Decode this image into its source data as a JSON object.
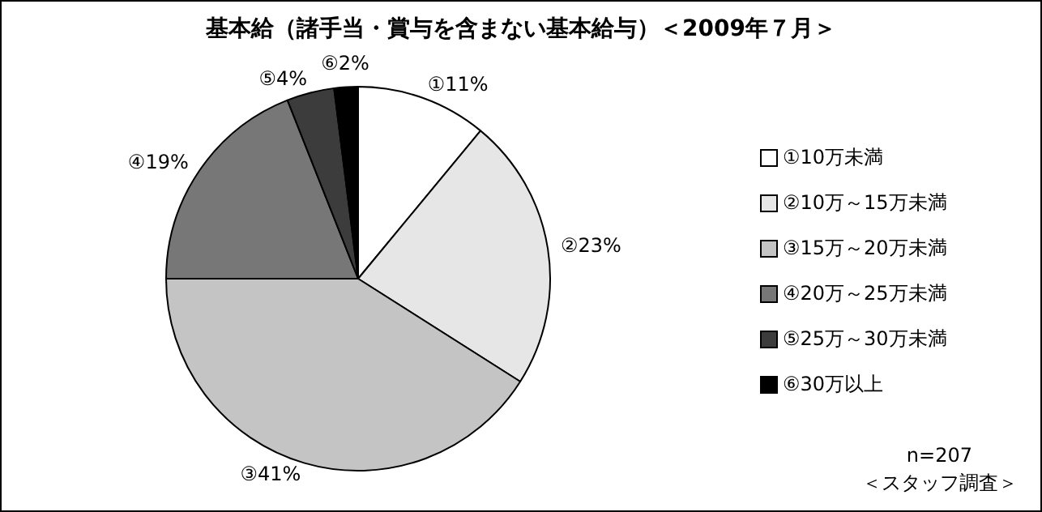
{
  "chart_data": {
    "type": "pie",
    "title": "基本給（諸手当・賞与を含まない基本給与）＜2009年７月＞",
    "categories": [
      "①10万未満",
      "②10万～15万未満",
      "③15万～20万未満",
      "④20万～25万未満",
      "⑤25万～30万未満",
      "⑥30万以上"
    ],
    "values": [
      11,
      23,
      41,
      19,
      4,
      2
    ],
    "colors": [
      "#ffffff",
      "#e6e6e6",
      "#c4c4c4",
      "#777777",
      "#3c3c3c",
      "#000000"
    ],
    "value_labels": [
      "①11%",
      "②23%",
      "③41%",
      "④19%",
      "⑤4%",
      "⑥2%"
    ],
    "legend": "right",
    "annotations": [
      "n=207",
      "＜スタッフ調査＞"
    ]
  }
}
